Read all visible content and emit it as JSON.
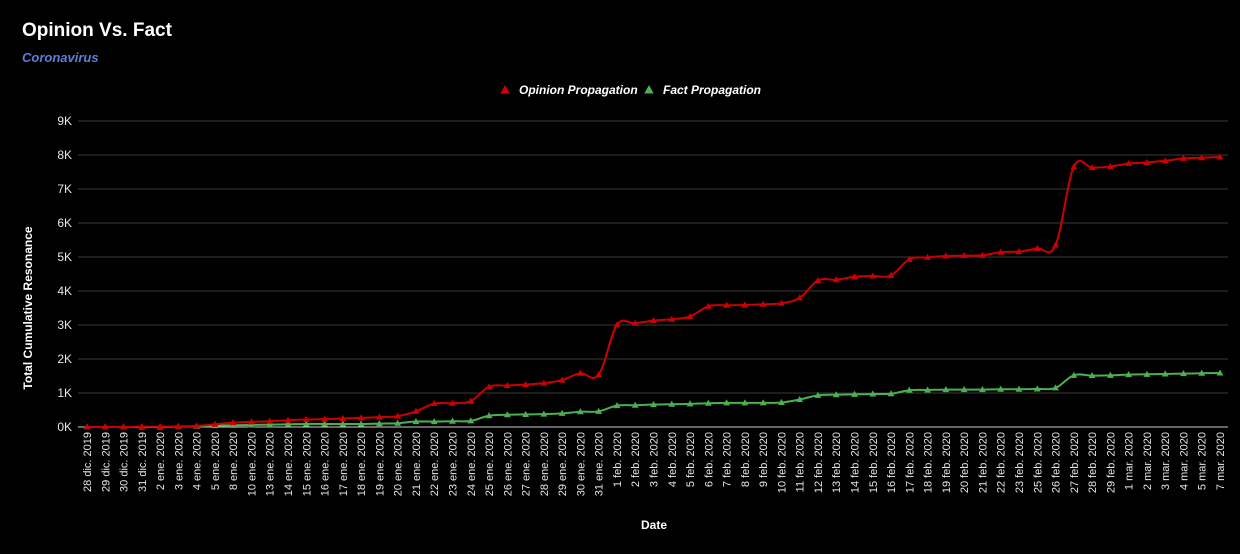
{
  "header": {
    "title": "Opinion Vs. Fact",
    "subtitle": "Coronavirus"
  },
  "colors": {
    "opinion": "#cc0000",
    "fact": "#4caf50",
    "grid": "#3a3a3a",
    "baseline": "#cccccc"
  },
  "chart_data": {
    "type": "line",
    "title": "Opinion Vs. Fact",
    "subtitle": "Coronavirus",
    "xlabel": "Date",
    "ylabel": "Total Cumulative Resonance",
    "ylim": [
      0,
      9000
    ],
    "yticks": [
      "0K",
      "1K",
      "2K",
      "3K",
      "4K",
      "5K",
      "6K",
      "7K",
      "8K",
      "9K"
    ],
    "grid": true,
    "legend_position": "top-center",
    "categories": [
      "28 dic. 2019",
      "29 dic. 2019",
      "30 dic. 2019",
      "31 dic. 2019",
      "2 ene. 2020",
      "3 ene. 2020",
      "4 ene. 2020",
      "5 ene. 2020",
      "8 ene. 2020",
      "10 ene. 2020",
      "13 ene. 2020",
      "14 ene. 2020",
      "15 ene. 2020",
      "16 ene. 2020",
      "17 ene. 2020",
      "18 ene. 2020",
      "19 ene. 2020",
      "20 ene. 2020",
      "21 ene. 2020",
      "22 ene. 2020",
      "23 ene. 2020",
      "24 ene. 2020",
      "25 ene. 2020",
      "26 ene. 2020",
      "27 ene. 2020",
      "28 ene. 2020",
      "29 ene. 2020",
      "30 ene. 2020",
      "31 ene. 2020",
      "1 feb. 2020",
      "2 feb. 2020",
      "3 feb. 2020",
      "4 feb. 2020",
      "5 feb. 2020",
      "6 feb. 2020",
      "7 feb. 2020",
      "8 feb. 2020",
      "9 feb. 2020",
      "10 feb. 2020",
      "11 feb. 2020",
      "12 feb. 2020",
      "13 feb. 2020",
      "14 feb. 2020",
      "15 feb. 2020",
      "16 feb. 2020",
      "17 feb. 2020",
      "18 feb. 2020",
      "19 feb. 2020",
      "20 feb. 2020",
      "21 feb. 2020",
      "22 feb. 2020",
      "23 feb. 2020",
      "25 feb. 2020",
      "26 feb. 2020",
      "27 feb. 2020",
      "28 feb. 2020",
      "29 feb. 2020",
      "1 mar. 2020",
      "2 mar. 2020",
      "3 mar. 2020",
      "4 mar. 2020",
      "5 mar. 2020",
      "7 mar. 2020"
    ],
    "series": [
      {
        "name": "Opinion Propagation",
        "values": [
          0,
          0,
          0,
          10,
          10,
          20,
          30,
          80,
          130,
          150,
          170,
          200,
          220,
          230,
          250,
          270,
          290,
          320,
          460,
          690,
          700,
          760,
          1180,
          1220,
          1250,
          1290,
          1380,
          1580,
          1540,
          3000,
          3050,
          3130,
          3170,
          3250,
          3550,
          3580,
          3590,
          3610,
          3640,
          3800,
          4310,
          4330,
          4420,
          4440,
          4460,
          4930,
          4990,
          5030,
          5040,
          5050,
          5140,
          5160,
          5250,
          5350,
          7650,
          7630,
          7660,
          7750,
          7780,
          7830,
          7900,
          7920,
          7940
        ]
      },
      {
        "name": "Fact Propagation",
        "values": [
          0,
          0,
          0,
          0,
          0,
          10,
          20,
          40,
          50,
          60,
          70,
          80,
          90,
          90,
          90,
          90,
          100,
          110,
          160,
          160,
          170,
          180,
          330,
          360,
          370,
          380,
          400,
          450,
          460,
          630,
          640,
          660,
          670,
          680,
          700,
          710,
          710,
          710,
          720,
          810,
          930,
          950,
          960,
          970,
          980,
          1080,
          1090,
          1100,
          1100,
          1100,
          1110,
          1110,
          1120,
          1150,
          1520,
          1510,
          1520,
          1540,
          1550,
          1560,
          1570,
          1580,
          1590
        ]
      }
    ]
  }
}
